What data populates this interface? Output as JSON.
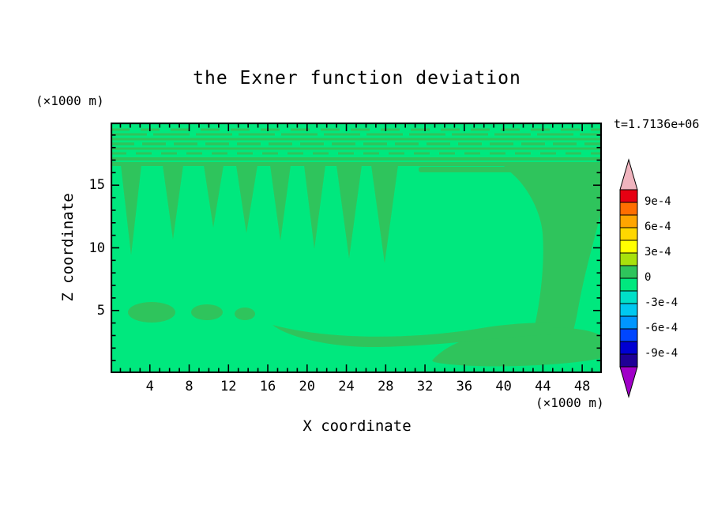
{
  "figure": {
    "background_color": "#ffffff"
  },
  "chart_data": {
    "type": "heatmap",
    "render_style": "filled-contour",
    "title": "the Exner function deviation",
    "time_annotation": "t=1.7136e+06",
    "xlabel": "X coordinate",
    "ylabel": "Z coordinate",
    "x_unit_label": "(×1000 m)",
    "y_unit_label": "(×1000 m)",
    "xlim": [
      0,
      50
    ],
    "ylim": [
      0,
      20
    ],
    "xticks": [
      4,
      8,
      12,
      16,
      20,
      24,
      28,
      32,
      36,
      40,
      44,
      48
    ],
    "yticks": [
      5,
      10,
      15
    ],
    "x_minor_tick_step": 1,
    "y_minor_tick_step": 1,
    "contour_levels": [
      -0.00105,
      -0.0009,
      -0.00075,
      -0.0006,
      -0.00045,
      -0.0003,
      -0.00015,
      0,
      0.00015,
      0.0003,
      0.00045,
      0.0006,
      0.00075,
      0.0009,
      0.00105
    ],
    "field_colors": {
      "weak_negative_band": "#00E87E",
      "weak_positive_band": "#2FC45C"
    },
    "colorbar": {
      "orientation": "vertical",
      "tick_labels": [
        "9e-4",
        "6e-4",
        "3e-4",
        "0",
        "-3e-4",
        "-6e-4",
        "-9e-4"
      ],
      "tick_boundary_indices": [
        1,
        3,
        5,
        7,
        9,
        11,
        13
      ],
      "segment_colors_top_to_bottom": [
        "#E60012",
        "#FF6E00",
        "#FFA500",
        "#FFD700",
        "#FFFF00",
        "#A8E10C",
        "#2FC45C",
        "#00E87E",
        "#00E0C8",
        "#00C8F0",
        "#0096FF",
        "#0046FF",
        "#0000D2",
        "#1E0096"
      ],
      "over_arrow_color": "#F0B4BE",
      "under_arrow_color": "#A000C8"
    },
    "features": [
      {
        "kind": "wave-band",
        "description": "fine alternating stripe / checker pattern across the top of the domain",
        "x_range": [
          0,
          50
        ],
        "z_range": [
          16.5,
          19.7
        ]
      },
      {
        "kind": "plumes",
        "description": "narrow weak-positive plumes hanging down from z≈16.5",
        "x_centers": [
          2,
          6.3,
          10.5,
          13.8,
          17.3,
          20.8,
          24.2,
          27.9
        ],
        "z_bottoms": [
          9.4,
          10.7,
          11.6,
          11.1,
          10.5,
          9.9,
          9.2,
          8.8
        ]
      },
      {
        "kind": "region",
        "description": "broad weak-positive region on the right side, wide aloft, narrowing at mid-levels and spreading again near the surface",
        "x_range": [
          40,
          50
        ],
        "z_range": [
          1,
          16.5
        ]
      },
      {
        "kind": "blobs",
        "description": "small closed weak-positive cells near z≈5",
        "x_centers": [
          4.2,
          9.8,
          13.7
        ],
        "z_center": 4.9
      },
      {
        "kind": "band",
        "description": "shallow weak-positive band along the lower boundary merging into the right-side region",
        "x_range": [
          16.5,
          50
        ],
        "z_range": [
          1,
          4.5
        ]
      }
    ]
  }
}
